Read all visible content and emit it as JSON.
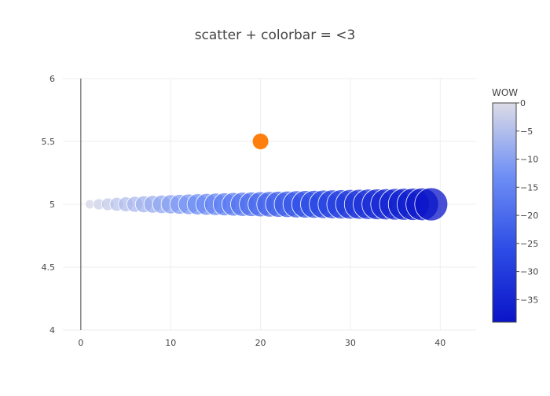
{
  "chart_data": {
    "type": "scatter",
    "title": "scatter + colorbar = <3",
    "xlabel": "",
    "ylabel": "",
    "xlim": [
      -2,
      44
    ],
    "ylim": [
      4,
      6
    ],
    "x_ticks": [
      "0",
      "10",
      "20",
      "30",
      "40"
    ],
    "y_ticks": [
      "4",
      "4.5",
      "5",
      "5.5",
      "6"
    ],
    "grid": true,
    "series": [
      {
        "marker_style": "bubble, color scale mapped to -x",
        "x": [
          0,
          1,
          2,
          3,
          4,
          5,
          6,
          7,
          8,
          9,
          10,
          11,
          12,
          13,
          14,
          15,
          16,
          17,
          18,
          19,
          20,
          21,
          22,
          23,
          24,
          25,
          26,
          27,
          28,
          29,
          30,
          31,
          32,
          33,
          34,
          35,
          36,
          37,
          38,
          39
        ],
        "y": [
          5,
          5,
          5,
          5,
          5,
          5,
          5,
          5,
          5,
          5,
          5,
          5,
          5,
          5,
          5,
          5,
          5,
          5,
          5,
          5,
          5,
          5,
          5,
          5,
          5,
          5,
          5,
          5,
          5,
          5,
          5,
          5,
          5,
          5,
          5,
          5,
          5,
          5,
          5,
          5
        ],
        "color_values": [
          0,
          -1,
          -2,
          -3,
          -4,
          -5,
          -6,
          -7,
          -8,
          -9,
          -10,
          -11,
          -12,
          -13,
          -14,
          -15,
          -16,
          -17,
          -18,
          -19,
          -20,
          -21,
          -22,
          -23,
          -24,
          -25,
          -26,
          -27,
          -28,
          -29,
          -30,
          -31,
          -32,
          -33,
          -34,
          -35,
          -36,
          -37,
          -38,
          -39
        ],
        "size_values": [
          0,
          1,
          2,
          3,
          4,
          5,
          6,
          7,
          8,
          9,
          10,
          11,
          12,
          13,
          14,
          15,
          16,
          17,
          18,
          19,
          20,
          21,
          22,
          23,
          24,
          25,
          26,
          27,
          28,
          29,
          30,
          31,
          32,
          33,
          34,
          35,
          36,
          37,
          38,
          39
        ]
      },
      {
        "marker_style": "single point",
        "x": [
          20
        ],
        "y": [
          5.5
        ],
        "color": "#ff7f0e"
      }
    ],
    "colorbar": {
      "title": "WOW",
      "range": [
        -39,
        0
      ],
      "ticks": [
        "0",
        "−5",
        "−10",
        "−15",
        "−20",
        "−25",
        "−30",
        "−35"
      ],
      "tick_values": [
        0,
        -5,
        -10,
        -15,
        -20,
        -25,
        -30,
        -35
      ],
      "colorscale": [
        "#dcdce6",
        "#6f8ff5",
        "#2e4ee6",
        "#0a14c8"
      ]
    }
  }
}
